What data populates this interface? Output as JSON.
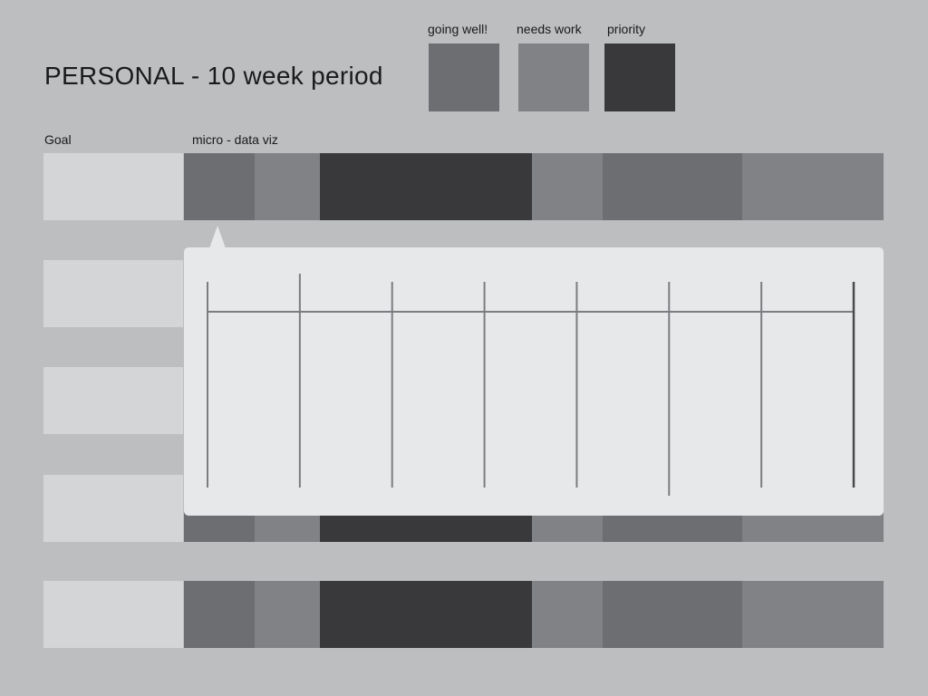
{
  "page": {
    "title": "PERSONAL - 10 week period"
  },
  "legend": [
    {
      "label": "going well!",
      "color": "#6d6e71"
    },
    {
      "label": "needs work",
      "color": "#818285"
    },
    {
      "label": "priority",
      "color": "#39393b"
    }
  ],
  "columns": {
    "goal": "Goal",
    "viz": "micro - data viz"
  },
  "colors": {
    "background": "#bdbec0",
    "goal_cell": "#d4d5d7",
    "popover": "#e7e8ea",
    "timeline_line": "#7c7d80",
    "going_well": "#6d6e71",
    "needs_work": "#818285",
    "priority": "#39393b"
  },
  "rows": [
    {
      "goal": "",
      "segments": [
        {
          "status": "going well!",
          "weeks": 1
        },
        {
          "status": "needs work",
          "weeks": 1
        },
        {
          "status": "priority",
          "weeks": 3
        },
        {
          "status": "needs work",
          "weeks": 1
        },
        {
          "status": "going well!",
          "weeks": 2
        },
        {
          "status": "needs work",
          "weeks": 2
        }
      ]
    },
    {
      "goal": "",
      "segments": []
    },
    {
      "goal": "",
      "segments": []
    },
    {
      "goal": "",
      "segments": [
        {
          "status": "going well!",
          "weeks": 1
        },
        {
          "status": "needs work",
          "weeks": 1
        },
        {
          "status": "priority",
          "weeks": 3
        },
        {
          "status": "needs work",
          "weeks": 1
        },
        {
          "status": "going well!",
          "weeks": 2
        },
        {
          "status": "needs work",
          "weeks": 2
        }
      ]
    },
    {
      "goal": "",
      "segments": [
        {
          "status": "going well!",
          "weeks": 1
        },
        {
          "status": "needs work",
          "weeks": 1
        },
        {
          "status": "priority",
          "weeks": 3
        },
        {
          "status": "needs work",
          "weeks": 1
        },
        {
          "status": "going well!",
          "weeks": 2
        },
        {
          "status": "needs work",
          "weeks": 2
        }
      ]
    }
  ],
  "popover": {
    "ticks": 8,
    "axis_label": ""
  }
}
